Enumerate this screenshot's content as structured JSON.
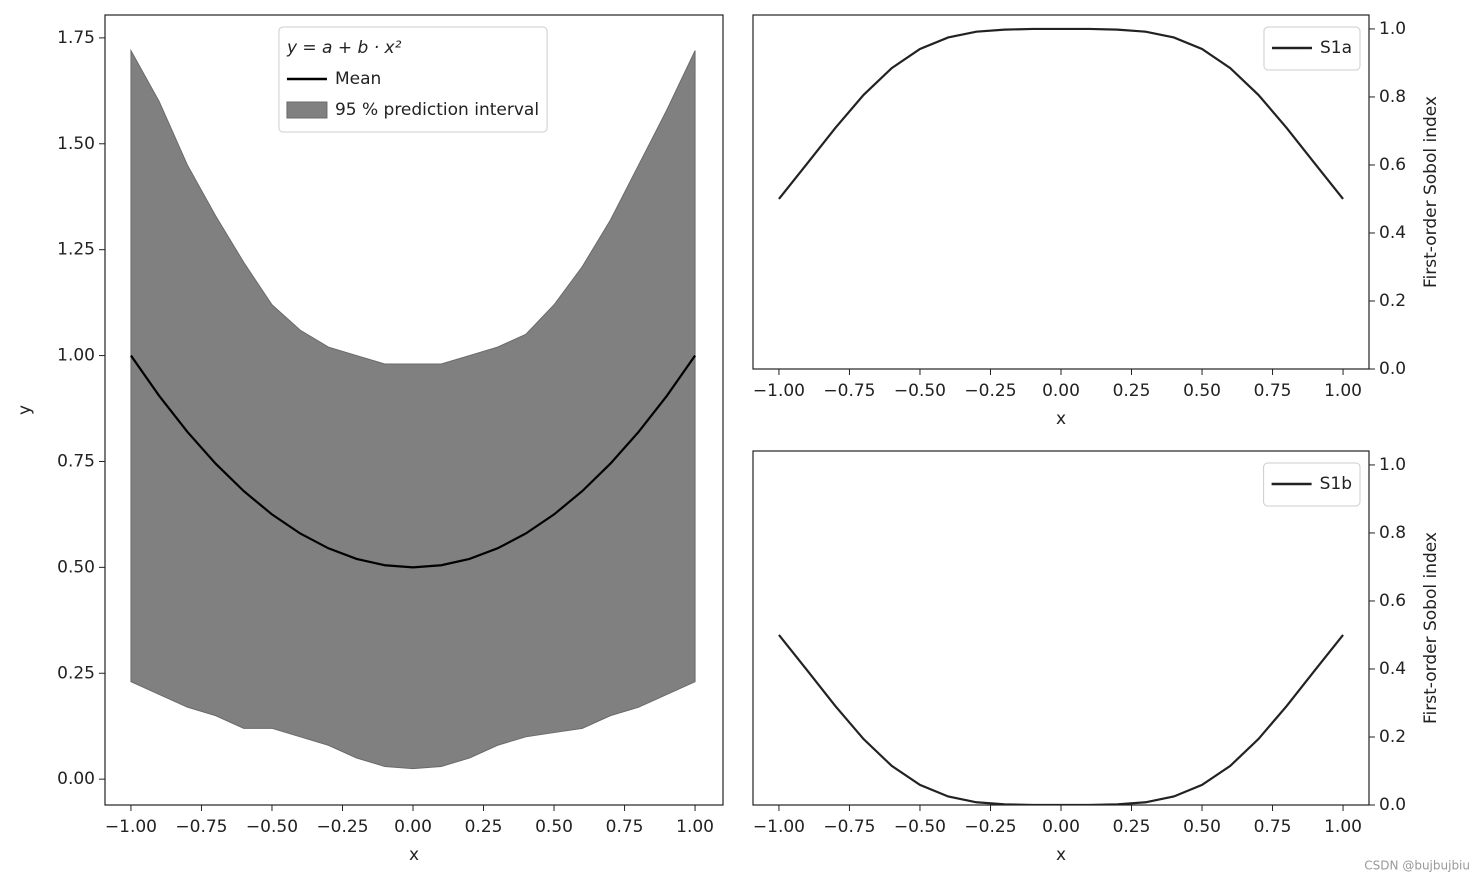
{
  "chart_data": [
    {
      "type": "line",
      "x": [
        -1,
        -0.9,
        -0.8,
        -0.7,
        -0.6,
        -0.5,
        -0.4,
        -0.3,
        -0.2,
        -0.1,
        0,
        0.1,
        0.2,
        0.3,
        0.4,
        0.5,
        0.6,
        0.7,
        0.8,
        0.9,
        1
      ],
      "series": [
        {
          "name": "Mean",
          "color": "#000000",
          "values": [
            1,
            0.905,
            0.82,
            0.745,
            0.68,
            0.625,
            0.58,
            0.545,
            0.52,
            0.505,
            0.5,
            0.505,
            0.52,
            0.545,
            0.58,
            0.625,
            0.68,
            0.745,
            0.82,
            0.905,
            1
          ]
        }
      ],
      "band": {
        "name": "95 % prediction interval",
        "color": "#808080",
        "lower": [
          0.23,
          0.2,
          0.17,
          0.15,
          0.12,
          0.12,
          0.1,
          0.08,
          0.05,
          0.03,
          0.025,
          0.03,
          0.05,
          0.08,
          0.1,
          0.11,
          0.12,
          0.15,
          0.17,
          0.2,
          0.23
        ],
        "upper": [
          1.72,
          1.6,
          1.45,
          1.33,
          1.22,
          1.12,
          1.06,
          1.02,
          1.0,
          0.98,
          0.98,
          0.98,
          1.0,
          1.02,
          1.05,
          1.12,
          1.21,
          1.32,
          1.45,
          1.58,
          1.72
        ]
      },
      "legend_title": "y = a + b · x²",
      "legend_loc": "upper center",
      "xlabel": "x",
      "ylabel": "y",
      "xlim": [
        -1.092,
        1.099
      ],
      "ylim": [
        -0.061,
        1.804
      ],
      "xticks": [
        {
          "value": -1,
          "label": "−1.00"
        },
        {
          "value": -0.75,
          "label": "−0.75"
        },
        {
          "value": -0.5,
          "label": "−0.50"
        },
        {
          "value": -0.25,
          "label": "−0.25"
        },
        {
          "value": 0,
          "label": "0.00"
        },
        {
          "value": 0.25,
          "label": "0.25"
        },
        {
          "value": 0.5,
          "label": "0.50"
        },
        {
          "value": 0.75,
          "label": "0.75"
        },
        {
          "value": 1,
          "label": "1.00"
        }
      ],
      "yticks": [
        {
          "value": 0,
          "label": "0.00"
        },
        {
          "value": 0.25,
          "label": "0.25"
        },
        {
          "value": 0.5,
          "label": "0.50"
        },
        {
          "value": 0.75,
          "label": "0.75"
        },
        {
          "value": 1,
          "label": "1.00"
        },
        {
          "value": 1.25,
          "label": "1.25"
        },
        {
          "value": 1.5,
          "label": "1.50"
        },
        {
          "value": 1.75,
          "label": "1.75"
        }
      ],
      "yaxis_side": "left"
    },
    {
      "type": "line",
      "x": [
        -1,
        -0.9,
        -0.8,
        -0.7,
        -0.6,
        -0.5,
        -0.4,
        -0.3,
        -0.2,
        -0.1,
        0,
        0.1,
        0.2,
        0.3,
        0.4,
        0.5,
        0.6,
        0.7,
        0.8,
        0.9,
        1
      ],
      "series": [
        {
          "name": "S1a",
          "color": "#222222",
          "values": [
            0.5,
            0.604,
            0.709,
            0.806,
            0.885,
            0.941,
            0.975,
            0.992,
            0.998,
            1.0,
            1.0,
            1.0,
            0.998,
            0.992,
            0.975,
            0.941,
            0.885,
            0.806,
            0.709,
            0.604,
            0.5
          ]
        }
      ],
      "legend_loc": "upper right",
      "xlabel": "x",
      "ylabel": "First-order Sobol index",
      "xlim": [
        -1.092,
        1.092
      ],
      "ylim": [
        0,
        1.041
      ],
      "xticks": [
        {
          "value": -1,
          "label": "−1.00"
        },
        {
          "value": -0.75,
          "label": "−0.75"
        },
        {
          "value": -0.5,
          "label": "−0.50"
        },
        {
          "value": -0.25,
          "label": "−0.25"
        },
        {
          "value": 0,
          "label": "0.00"
        },
        {
          "value": 0.25,
          "label": "0.25"
        },
        {
          "value": 0.5,
          "label": "0.50"
        },
        {
          "value": 0.75,
          "label": "0.75"
        },
        {
          "value": 1,
          "label": "1.00"
        }
      ],
      "yticks": [
        {
          "value": 0,
          "label": "0.0"
        },
        {
          "value": 0.2,
          "label": "0.2"
        },
        {
          "value": 0.4,
          "label": "0.4"
        },
        {
          "value": 0.6,
          "label": "0.6"
        },
        {
          "value": 0.8,
          "label": "0.8"
        },
        {
          "value": 1,
          "label": "1.0"
        }
      ],
      "yaxis_side": "right"
    },
    {
      "type": "line",
      "x": [
        -1,
        -0.9,
        -0.8,
        -0.7,
        -0.6,
        -0.5,
        -0.4,
        -0.3,
        -0.2,
        -0.1,
        0,
        0.1,
        0.2,
        0.3,
        0.4,
        0.5,
        0.6,
        0.7,
        0.8,
        0.9,
        1
      ],
      "series": [
        {
          "name": "S1b",
          "color": "#222222",
          "values": [
            0.5,
            0.396,
            0.291,
            0.194,
            0.115,
            0.059,
            0.025,
            0.008,
            0.002,
            0,
            0,
            0,
            0.002,
            0.008,
            0.025,
            0.059,
            0.115,
            0.194,
            0.291,
            0.396,
            0.5
          ]
        }
      ],
      "legend_loc": "upper right",
      "xlabel": "x",
      "ylabel": "First-order Sobol index",
      "xlim": [
        -1.092,
        1.092
      ],
      "ylim": [
        0,
        1.041
      ],
      "xticks": [
        {
          "value": -1,
          "label": "−1.00"
        },
        {
          "value": -0.75,
          "label": "−0.75"
        },
        {
          "value": -0.5,
          "label": "−0.50"
        },
        {
          "value": -0.25,
          "label": "−0.25"
        },
        {
          "value": 0,
          "label": "0.00"
        },
        {
          "value": 0.25,
          "label": "0.25"
        },
        {
          "value": 0.5,
          "label": "0.50"
        },
        {
          "value": 0.75,
          "label": "0.75"
        },
        {
          "value": 1,
          "label": "1.00"
        }
      ],
      "yticks": [
        {
          "value": 0,
          "label": "0.0"
        },
        {
          "value": 0.2,
          "label": "0.2"
        },
        {
          "value": 0.4,
          "label": "0.4"
        },
        {
          "value": 0.6,
          "label": "0.6"
        },
        {
          "value": 0.8,
          "label": "0.8"
        },
        {
          "value": 1,
          "label": "1.0"
        }
      ],
      "yaxis_side": "right"
    }
  ],
  "watermark": "CSDN @bujbujbiu"
}
